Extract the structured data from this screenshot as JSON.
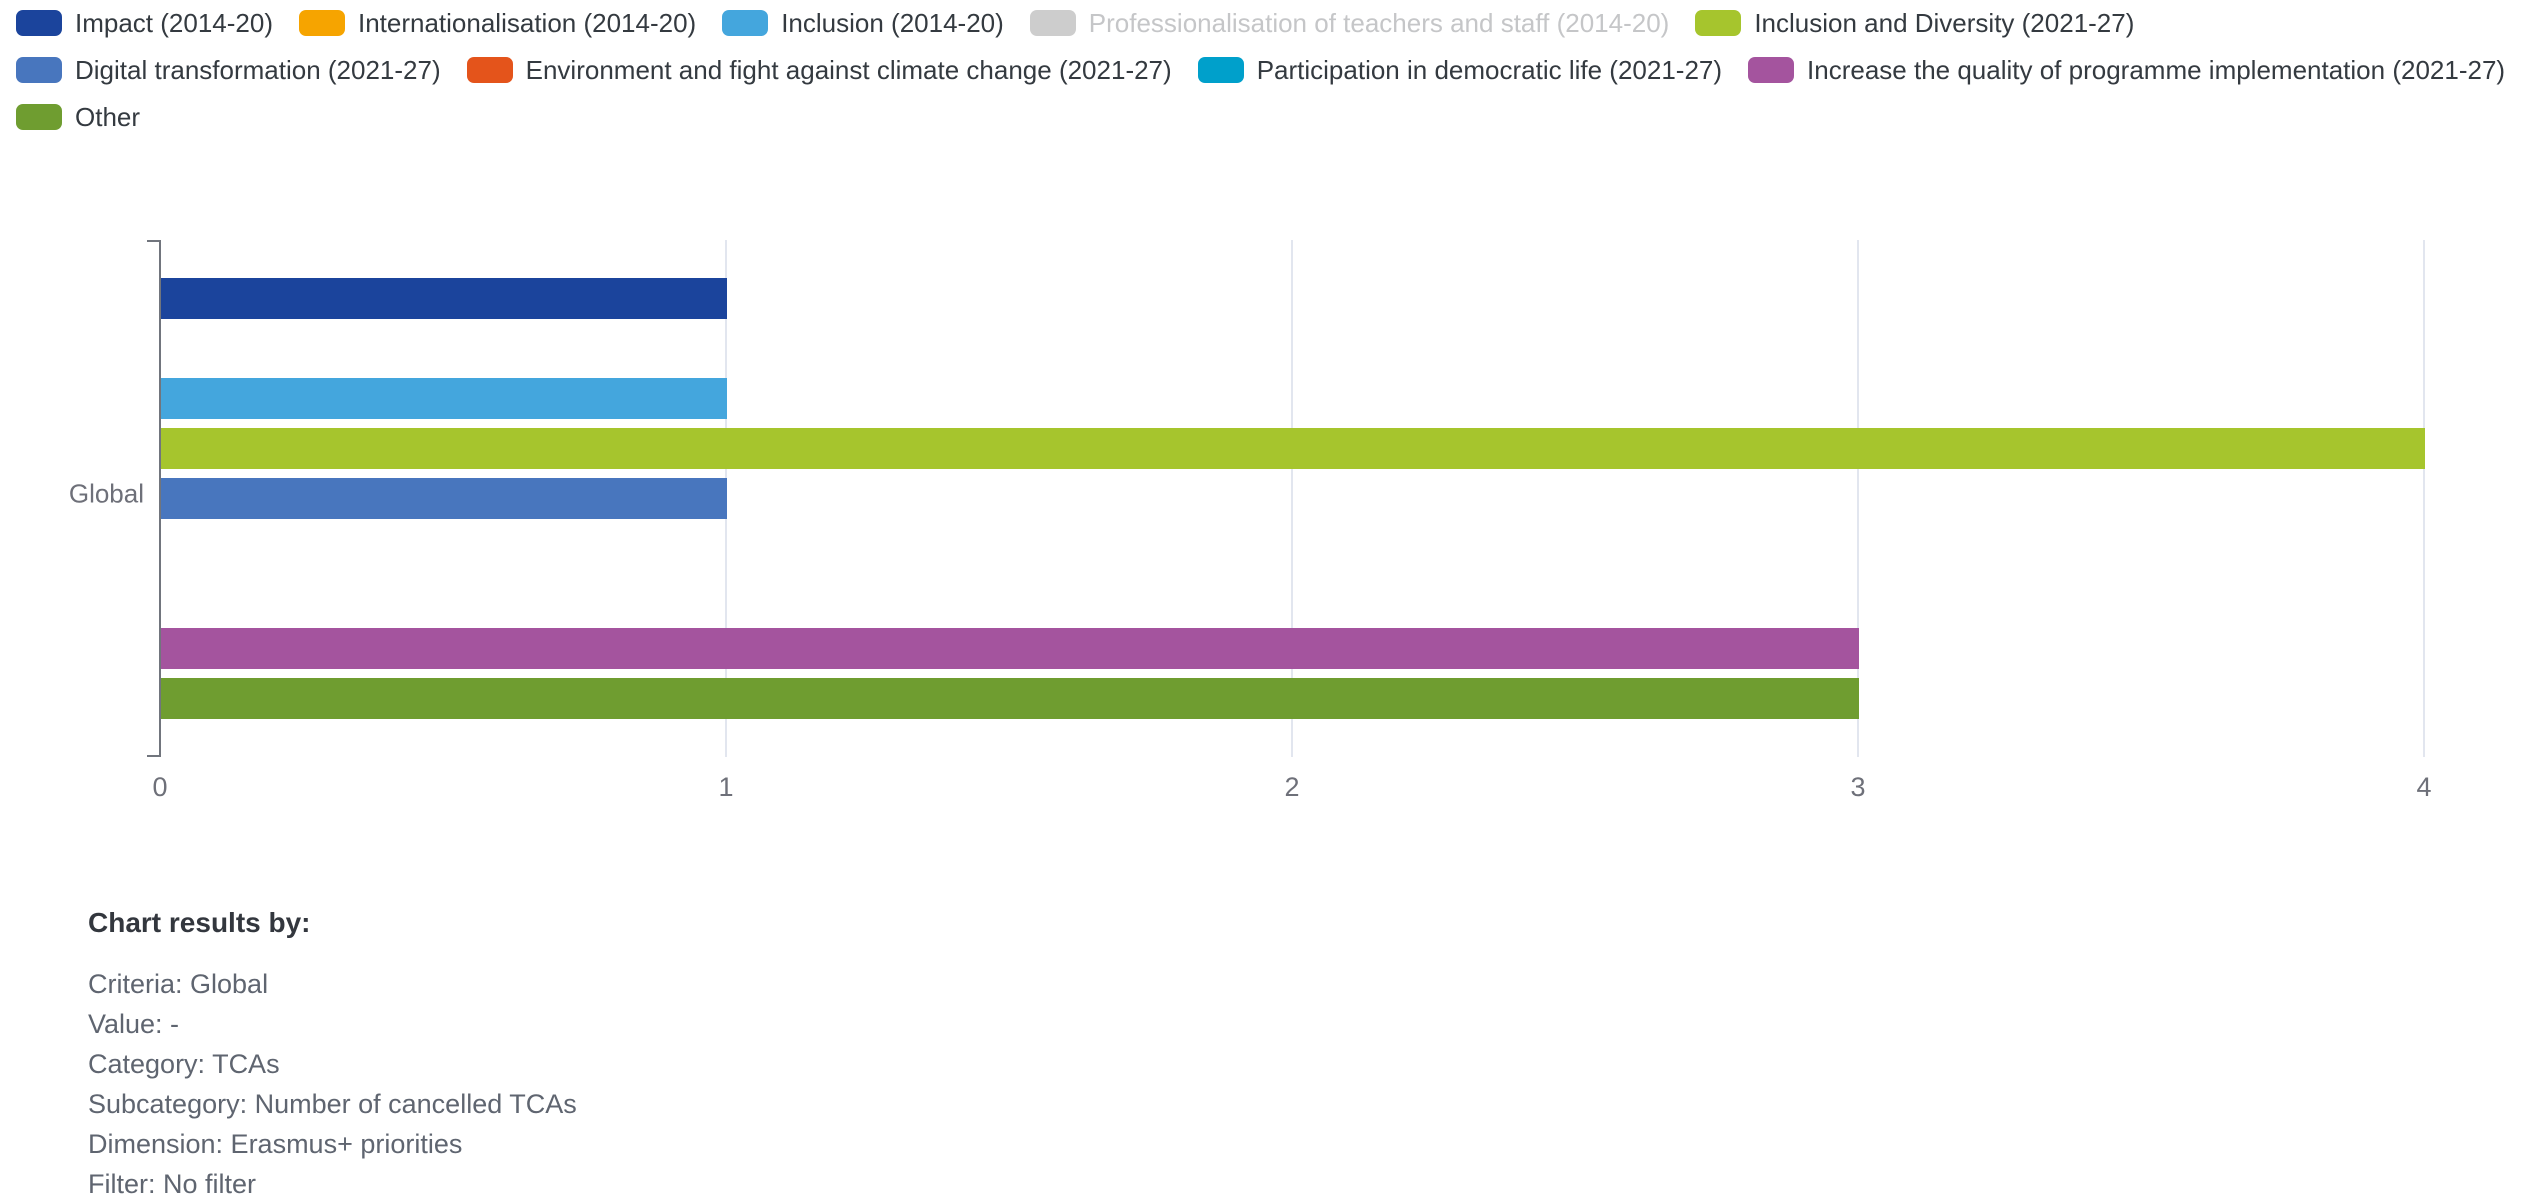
{
  "legend": {
    "rows": [
      [
        {
          "label": "Impact (2014-20)",
          "color": "#1b449c",
          "disabled": false
        },
        {
          "label": "Internationalisation (2014-20)",
          "color": "#f6a400",
          "disabled": false
        },
        {
          "label": "Inclusion (2014-20)",
          "color": "#44a6dd",
          "disabled": false
        },
        {
          "label": "Professionalisation of teachers and staff (2014-20)",
          "color": "#cdcdcd",
          "disabled": true
        },
        {
          "label": "Inclusion and Diversity (2021-27)",
          "color": "#a6c52d",
          "disabled": false
        }
      ],
      [
        {
          "label": "Digital transformation (2021-27)",
          "color": "#4876be",
          "disabled": false
        },
        {
          "label": "Environment and fight against climate change (2021-27)",
          "color": "#e4541b",
          "disabled": false
        },
        {
          "label": "Participation in democratic life (2021-27)",
          "color": "#00a0cb",
          "disabled": false
        },
        {
          "label": "Increase the quality of programme implementation (2021-27)",
          "color": "#a4549e",
          "disabled": false
        }
      ],
      [
        {
          "label": "Other",
          "color": "#6f9d30",
          "disabled": false
        }
      ]
    ]
  },
  "chart_data": {
    "type": "bar",
    "orientation": "horizontal",
    "title": "",
    "categories": [
      "Global"
    ],
    "series": [
      {
        "name": "Impact (2014-20)",
        "color": "#1b449c",
        "values": [
          1
        ],
        "deselected": false
      },
      {
        "name": "Internationalisation (2014-20)",
        "color": "#f6a400",
        "values": [
          0
        ],
        "deselected": false
      },
      {
        "name": "Inclusion (2014-20)",
        "color": "#44a6dd",
        "values": [
          1
        ],
        "deselected": false
      },
      {
        "name": "Professionalisation of teachers and staff (2014-20)",
        "color": "#cdcdcd",
        "values": [
          null
        ],
        "deselected": true
      },
      {
        "name": "Inclusion and Diversity (2021-27)",
        "color": "#a6c52d",
        "values": [
          4
        ],
        "deselected": false
      },
      {
        "name": "Digital transformation (2021-27)",
        "color": "#4876be",
        "values": [
          1
        ],
        "deselected": false
      },
      {
        "name": "Environment and fight against climate change (2021-27)",
        "color": "#e4541b",
        "values": [
          0
        ],
        "deselected": false
      },
      {
        "name": "Participation in democratic life (2021-27)",
        "color": "#00a0cb",
        "values": [
          0
        ],
        "deselected": false
      },
      {
        "name": "Increase the quality of programme implementation (2021-27)",
        "color": "#a4549e",
        "values": [
          3
        ],
        "deselected": false
      },
      {
        "name": "Other",
        "color": "#6f9d30",
        "values": [
          3
        ],
        "deselected": false
      }
    ],
    "xlabel": "",
    "ylabel": "",
    "xlim": [
      0,
      4
    ],
    "xticks": [
      0,
      1,
      2,
      3,
      4
    ],
    "grid": true,
    "legend_position": "top",
    "colors": {
      "gridline": "#e2e6ef",
      "axis_line": "#71757d",
      "tick_label": "#6e7079"
    }
  },
  "footer": {
    "title": "Chart results by:",
    "lines": [
      "Criteria: Global",
      "Value: -",
      "Category: TCAs",
      "Subcategory: Number of cancelled TCAs",
      "Dimension: Erasmus+ priorities",
      "Filter: No filter"
    ]
  }
}
